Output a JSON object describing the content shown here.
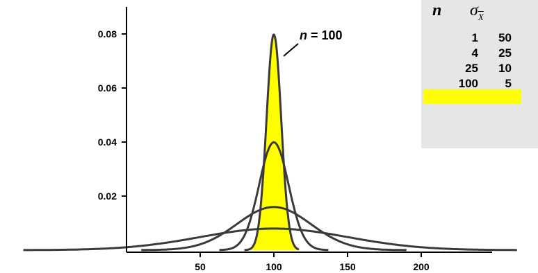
{
  "chart_data": {
    "type": "line",
    "title": "",
    "xlabel": "",
    "ylabel": "",
    "xlim": [
      -70,
      265
    ],
    "ylim": [
      0,
      0.092
    ],
    "xticks": [
      50,
      100,
      150,
      200
    ],
    "yticks": [
      0.02,
      0.04,
      0.06,
      0.08
    ],
    "ytick_labels": [
      "0.02",
      "0.04",
      "0.06",
      "0.08"
    ],
    "series": [
      {
        "n": 1,
        "mean": 100,
        "sd": 50,
        "range": [
          -70,
          265
        ],
        "shaded": false
      },
      {
        "n": 4,
        "mean": 100,
        "sd": 25,
        "range": [
          10,
          190
        ],
        "shaded": false
      },
      {
        "n": 25,
        "mean": 100,
        "sd": 10,
        "range": [
          63,
          137
        ],
        "shaded": false
      },
      {
        "n": 100,
        "mean": 100,
        "sd": 5,
        "range": [
          80,
          117
        ],
        "shaded": true
      }
    ],
    "annotation": {
      "var": "n",
      "rest": " = 100"
    },
    "legend": {
      "header_n": "n",
      "header_sigma": "σ",
      "header_sub": "X",
      "rows": [
        {
          "n": "1",
          "sigma": "50"
        },
        {
          "n": "4",
          "sigma": "25"
        },
        {
          "n": "25",
          "sigma": "10"
        },
        {
          "n": "100",
          "sigma": "5"
        }
      ],
      "highlight_row": 3
    },
    "colors": {
      "curve": "#3a3a3a",
      "fill": "#ffff00",
      "panel": "#e6e6e6",
      "axis": "#000000"
    }
  }
}
